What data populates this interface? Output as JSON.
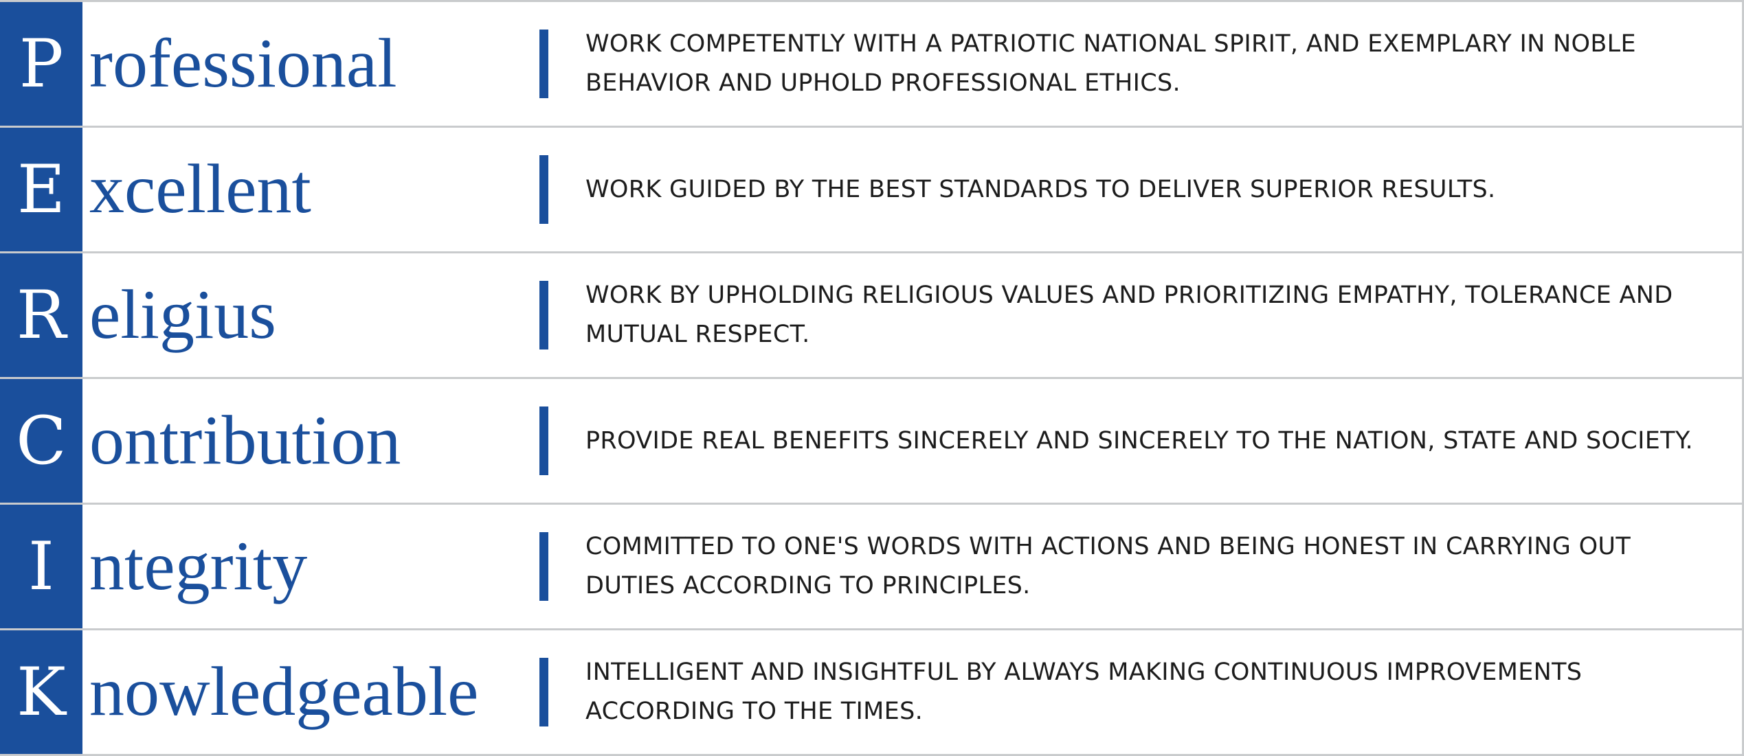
{
  "colors": {
    "brand_blue": "#1a4f9c",
    "row_border": "#c9cbcd",
    "text_dark": "#1c1c1c"
  },
  "rows": [
    {
      "initial": "P",
      "rest": "rofessional",
      "description": "WORK COMPETENTLY WITH A PATRIOTIC NATIONAL SPIRIT, AND EXEMPLARY IN NOBLE BEHAVIOR AND UPHOLD PROFESSIONAL ETHICS."
    },
    {
      "initial": "E",
      "rest": "xcellent",
      "description": "WORK GUIDED BY THE BEST STANDARDS TO DELIVER SUPERIOR RESULTS."
    },
    {
      "initial": "R",
      "rest": "eligius",
      "description": "WORK BY UPHOLDING RELIGIOUS VALUES AND PRIORITIZING EMPATHY, TOLERANCE AND MUTUAL RESPECT."
    },
    {
      "initial": "C",
      "rest": "ontribution",
      "description": "PROVIDE REAL BENEFITS SINCERELY AND SINCERELY TO THE NATION, STATE AND SOCIETY."
    },
    {
      "initial": "I",
      "rest": "ntegrity",
      "description": "COMMITTED TO ONE'S WORDS WITH ACTIONS AND BEING HONEST IN CARRYING OUT DUTIES ACCORDING TO PRINCIPLES."
    },
    {
      "initial": "K",
      "rest": "nowledgeable",
      "description": "INTELLIGENT AND INSIGHTFUL BY ALWAYS MAKING CONTINUOUS IMPROVEMENTS ACCORDING TO THE TIMES."
    }
  ]
}
